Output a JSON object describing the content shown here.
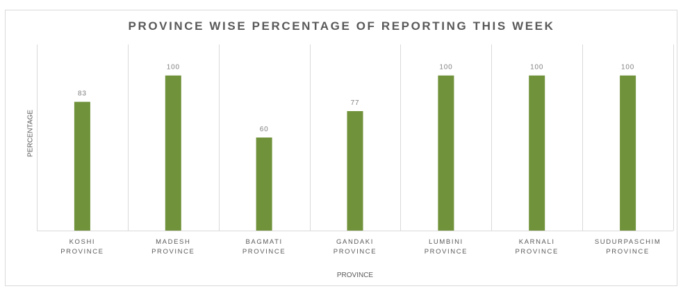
{
  "chart_data": {
    "type": "bar",
    "title": "PROVINCE WISE PERCENTAGE OF REPORTING THIS WEEK",
    "xlabel": "PROVINCE",
    "ylabel": "PERCENTAGE",
    "categories": [
      [
        "KOSHI",
        "PROVINCE"
      ],
      [
        "MADESH",
        "PROVINCE"
      ],
      [
        "BAGMATI",
        "PROVINCE"
      ],
      [
        "GANDAKI",
        "PROVINCE"
      ],
      [
        "LUMBINI",
        "PROVINCE"
      ],
      [
        "KARNALI",
        "PROVINCE"
      ],
      [
        "SUDURPASCHIM",
        "PROVINCE"
      ]
    ],
    "values": [
      83,
      100,
      60,
      77,
      100,
      100,
      100
    ],
    "ylim": [
      0,
      120
    ],
    "grid": "vertical category separators",
    "legend": "none",
    "bar_color": "#70923a",
    "gridline_color": "#d9d9d9"
  }
}
